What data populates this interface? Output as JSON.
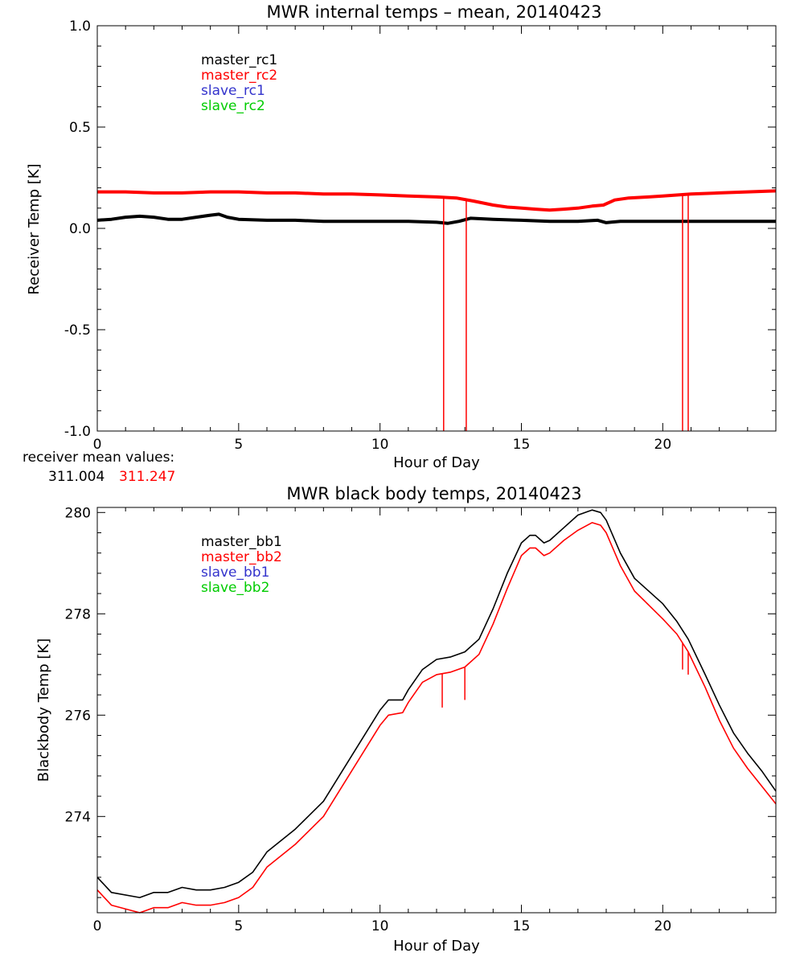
{
  "colors": {
    "black": "#000000",
    "red": "#ff0000",
    "blue": "#3333cc",
    "green": "#00cc00"
  },
  "mean_values": {
    "label": "receiver mean values:",
    "value1": "311.004",
    "value2": "311.247"
  },
  "chart_data": [
    {
      "type": "line",
      "title": "MWR internal temps – mean, 20140423",
      "xlabel": "Hour of Day",
      "ylabel": "Receiver Temp [K]",
      "xlim": [
        0,
        24
      ],
      "ylim": [
        -1.0,
        1.0
      ],
      "xticks": [
        0,
        5,
        10,
        15,
        20
      ],
      "xtick_labels": [
        "0",
        "5",
        "10",
        "15",
        "20"
      ],
      "yticks": [
        -1.0,
        -0.5,
        0.0,
        0.5,
        1.0
      ],
      "ytick_labels": [
        "-1.0",
        "-0.5",
        "0.0",
        "0.5",
        "1.0"
      ],
      "legend_position": "top-left",
      "series": [
        {
          "name": "master_rc1",
          "color": "#000000",
          "x": [
            0,
            0.5,
            1.0,
            1.5,
            2.0,
            2.5,
            3.0,
            3.5,
            4.0,
            4.3,
            4.6,
            5.0,
            6.0,
            7.0,
            8.0,
            9.0,
            10.0,
            11.0,
            12.0,
            12.4,
            12.8,
            13.2,
            14.0,
            15.0,
            16.0,
            17.0,
            17.7,
            18.0,
            18.5,
            19.0,
            20.0,
            21.0,
            22.0,
            23.0,
            24.0
          ],
          "y": [
            0.04,
            0.045,
            0.055,
            0.06,
            0.055,
            0.045,
            0.045,
            0.055,
            0.065,
            0.07,
            0.055,
            0.045,
            0.04,
            0.04,
            0.035,
            0.035,
            0.035,
            0.035,
            0.03,
            0.025,
            0.035,
            0.05,
            0.045,
            0.04,
            0.035,
            0.035,
            0.04,
            0.028,
            0.035,
            0.035,
            0.035,
            0.035,
            0.035,
            0.035,
            0.035
          ]
        },
        {
          "name": "master_rc2",
          "color": "#ff0000",
          "x": [
            0,
            1,
            2,
            3,
            4,
            5,
            6,
            7,
            8,
            9,
            10,
            11,
            12.0,
            12.7,
            13.3,
            14.0,
            14.5,
            15.0,
            15.5,
            16.0,
            16.5,
            17.0,
            17.5,
            17.9,
            18.3,
            18.8,
            19.5,
            20.0,
            21.0,
            22.0,
            23.0,
            24.0
          ],
          "y": [
            0.18,
            0.18,
            0.175,
            0.175,
            0.18,
            0.18,
            0.175,
            0.175,
            0.17,
            0.17,
            0.165,
            0.16,
            0.155,
            0.15,
            0.135,
            0.115,
            0.105,
            0.1,
            0.095,
            0.09,
            0.095,
            0.1,
            0.11,
            0.115,
            0.14,
            0.15,
            0.155,
            0.16,
            0.17,
            0.175,
            0.18,
            0.185
          ],
          "dropouts_to_ymin": [
            12.25,
            13.05,
            20.7,
            20.9
          ]
        },
        {
          "name": "slave_rc1",
          "color": "#3333cc",
          "x": [],
          "y": []
        },
        {
          "name": "slave_rc2",
          "color": "#00cc00",
          "x": [],
          "y": []
        }
      ]
    },
    {
      "type": "line",
      "title": "MWR black body temps, 20140423",
      "xlabel": "Hour of Day",
      "ylabel": "Blackbody Temp [K]",
      "xlim": [
        0,
        24
      ],
      "ylim": [
        272.1,
        280.1
      ],
      "xticks": [
        0,
        5,
        10,
        15,
        20
      ],
      "xtick_labels": [
        "0",
        "5",
        "10",
        "15",
        "20"
      ],
      "yticks": [
        274,
        276,
        278,
        280
      ],
      "ytick_labels": [
        "274",
        "276",
        "278",
        "280"
      ],
      "legend_position": "top-left",
      "series": [
        {
          "name": "master_bb1",
          "color": "#000000",
          "x": [
            0,
            0.5,
            1.5,
            2.0,
            2.5,
            3.0,
            3.5,
            4.0,
            4.5,
            5.0,
            5.5,
            6.0,
            7.0,
            8.0,
            9.0,
            10.0,
            10.3,
            10.8,
            11.0,
            11.5,
            12.0,
            12.5,
            13.0,
            13.5,
            14.0,
            14.5,
            15.0,
            15.3,
            15.5,
            15.8,
            16.0,
            16.5,
            17.0,
            17.5,
            17.8,
            18.0,
            18.5,
            19.0,
            20.0,
            20.5,
            20.9,
            21.5,
            22.0,
            22.5,
            23.0,
            23.5,
            24.0
          ],
          "y": [
            272.8,
            272.5,
            272.4,
            272.5,
            272.5,
            272.6,
            272.55,
            272.55,
            272.6,
            272.7,
            272.9,
            273.3,
            273.75,
            274.3,
            275.2,
            276.1,
            276.3,
            276.3,
            276.5,
            276.9,
            277.1,
            277.15,
            277.25,
            277.5,
            278.1,
            278.8,
            279.4,
            279.55,
            279.55,
            279.4,
            279.45,
            279.7,
            279.95,
            280.05,
            280.0,
            279.85,
            279.2,
            278.7,
            278.2,
            277.85,
            277.5,
            276.8,
            276.2,
            275.65,
            275.25,
            274.9,
            274.5
          ]
        },
        {
          "name": "master_bb2",
          "color": "#ff0000",
          "x": [
            0,
            0.5,
            1.5,
            2.0,
            2.5,
            3.0,
            3.5,
            4.0,
            4.5,
            5.0,
            5.5,
            6.0,
            7.0,
            8.0,
            9.0,
            10.0,
            10.3,
            10.8,
            11.0,
            11.5,
            12.0,
            12.5,
            13.0,
            13.5,
            14.0,
            14.5,
            15.0,
            15.3,
            15.5,
            15.8,
            16.0,
            16.5,
            17.0,
            17.5,
            17.8,
            18.0,
            18.5,
            19.0,
            20.0,
            20.5,
            20.9,
            21.5,
            22.0,
            22.5,
            23.0,
            23.5,
            24.0
          ],
          "y": [
            272.55,
            272.25,
            272.1,
            272.2,
            272.2,
            272.3,
            272.25,
            272.25,
            272.3,
            272.4,
            272.6,
            273.0,
            273.45,
            274.0,
            274.9,
            275.8,
            276.0,
            276.05,
            276.25,
            276.65,
            276.8,
            276.85,
            276.95,
            277.2,
            277.8,
            278.5,
            279.15,
            279.3,
            279.3,
            279.15,
            279.2,
            279.45,
            279.65,
            279.8,
            279.75,
            279.6,
            278.95,
            278.45,
            277.9,
            277.6,
            277.25,
            276.55,
            275.9,
            275.35,
            274.95,
            274.6,
            274.25
          ],
          "spikes": [
            [
              12.2,
              276.15
            ],
            [
              13.0,
              276.3
            ],
            [
              20.7,
              276.9
            ],
            [
              20.9,
              276.8
            ]
          ]
        },
        {
          "name": "slave_bb1",
          "color": "#3333cc",
          "x": [],
          "y": []
        },
        {
          "name": "slave_bb2",
          "color": "#00cc00",
          "x": [],
          "y": []
        }
      ]
    }
  ]
}
